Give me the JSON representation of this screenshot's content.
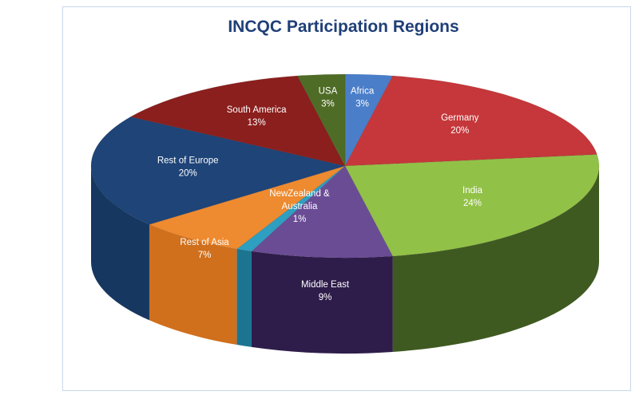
{
  "chart_data": {
    "type": "pie",
    "title": "INCQC Participation Regions",
    "slices": [
      {
        "label": "Africa",
        "value": 3,
        "value_label": "3%",
        "color": "#4a7ec9",
        "side": "#2a5693"
      },
      {
        "label": "Germany",
        "value": 20,
        "value_label": "20%",
        "color": "#c5373a",
        "side": "#7e1c1f"
      },
      {
        "label": "India",
        "value": 24,
        "value_label": "24%",
        "color": "#92c147",
        "side": "#3f5a21"
      },
      {
        "label": "Middle East",
        "value": 9,
        "value_label": "9%",
        "color": "#6a4c95",
        "side": "#2e1d4a"
      },
      {
        "label": "NewZealand & Australia",
        "value": 1,
        "value_label": "1%",
        "color": "#2e9fc0",
        "side": "#1b7591"
      },
      {
        "label": "Rest of Asia",
        "value": 7,
        "value_label": "7%",
        "color": "#ee8a2f",
        "side": "#d06f1c"
      },
      {
        "label": "Rest of Europe",
        "value": 20,
        "value_label": "20%",
        "color": "#1e4478",
        "side": "#163760"
      },
      {
        "label": "South America",
        "value": 13,
        "value_label": "13%",
        "color": "#8a1f1d",
        "side": "#5a1211"
      },
      {
        "label": "USA",
        "value": 3,
        "value_label": "3%",
        "color": "#4f6c27",
        "side": "#33461a"
      }
    ]
  }
}
